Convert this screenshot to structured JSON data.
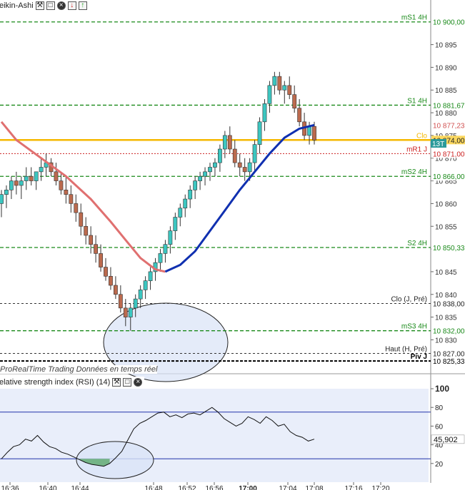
{
  "price_panel": {
    "title": "eikin-Ashi",
    "watermark": "ProRealTime Trading  Données en temps réel",
    "y_ticks": [
      "10 895",
      "10 890",
      "10 885",
      "10 880",
      "10 875",
      "10 870",
      "10 865",
      "10 860",
      "10 855",
      "10 850",
      "10 845",
      "10 840",
      "10 835",
      "10 830"
    ]
  },
  "rsi_panel": {
    "title": "elative strength index (RSI) (14)",
    "y_ticks": [
      "100",
      "80",
      "60",
      "40",
      "20"
    ],
    "value_label": "45,902"
  },
  "x_axis": {
    "labels": [
      "16:36",
      "16:40",
      "16:44",
      "16:48",
      "16:52",
      "16:56",
      "17:00",
      "17:04",
      "17:08",
      "17:16",
      "17:20"
    ]
  },
  "colors": {
    "bull": "#3cc6c0",
    "bear": "#bb6a4e",
    "ma_red": "#e07070",
    "ma_blue": "#1030b0",
    "green_level": "#1a8a1a",
    "red_level": "#cc2222",
    "black_level": "#333333",
    "close_line": "#f5b800",
    "rsi_band": "#2233aa",
    "ellipse_fill": "#d9e3f7"
  },
  "chart_data": [
    {
      "type": "candlestick",
      "title": "eikin-Ashi",
      "ylim": [
        10823,
        10902
      ],
      "x_labels": [
        "16:36",
        "16:40",
        "16:44",
        "16:48",
        "16:52",
        "16:56",
        "17:00",
        "17:04",
        "17:08",
        "17:16",
        "17:20"
      ],
      "levels": [
        {
          "name": "mS1 4H",
          "value_label": "10 900,00",
          "value": 10900.0,
          "style": "green"
        },
        {
          "name": "S1 4H",
          "value_label": "10 881,67",
          "value": 10881.67,
          "style": "green"
        },
        {
          "name": "",
          "value_label": "10 877,23",
          "value": 10877.23,
          "style": "last"
        },
        {
          "name": "Clo",
          "value_label": "10 874,00",
          "value": 10874.0,
          "style": "close"
        },
        {
          "name": "mR1 J",
          "value_label": "10 871,00",
          "value": 10871.0,
          "style": "red"
        },
        {
          "name": "mS2 4H",
          "value_label": "10 866,00",
          "value": 10866.0,
          "style": "green"
        },
        {
          "name": "S2 4H",
          "value_label": "10 850,33",
          "value": 10850.33,
          "style": "green"
        },
        {
          "name": "Clo (J, Pré)",
          "value_label": "10 838,00",
          "value": 10838.0,
          "style": "black"
        },
        {
          "name": "mS3 4H",
          "value_label": "10 832,00",
          "value": 10832.0,
          "style": "green"
        },
        {
          "name": "Haut (H, Pré)",
          "value_label": "10 827,00",
          "value": 10827.0,
          "style": "black"
        },
        {
          "name": "Piv J",
          "value_label": "10 825,33",
          "value": 10825.33,
          "style": "black_bold"
        }
      ],
      "candles": [
        [
          10860,
          10863,
          10857,
          10862
        ],
        [
          10862,
          10864,
          10859,
          10863
        ],
        [
          10863,
          10866,
          10861,
          10865
        ],
        [
          10865,
          10867,
          10862,
          10864
        ],
        [
          10864,
          10866,
          10861,
          10865
        ],
        [
          10865,
          10868,
          10863,
          10866
        ],
        [
          10866,
          10868,
          10864,
          10865
        ],
        [
          10865,
          10867,
          10863,
          10867
        ],
        [
          10867,
          10870,
          10865,
          10868
        ],
        [
          10868,
          10871,
          10866,
          10869
        ],
        [
          10869,
          10870,
          10866,
          10867
        ],
        [
          10867,
          10869,
          10864,
          10865
        ],
        [
          10865,
          10867,
          10862,
          10863
        ],
        [
          10863,
          10866,
          10860,
          10862
        ],
        [
          10862,
          10864,
          10858,
          10860
        ],
        [
          10860,
          10862,
          10856,
          10858
        ],
        [
          10858,
          10860,
          10853,
          10855
        ],
        [
          10855,
          10857,
          10851,
          10853
        ],
        [
          10853,
          10855,
          10849,
          10851
        ],
        [
          10851,
          10853,
          10847,
          10849
        ],
        [
          10849,
          10851,
          10845,
          10846
        ],
        [
          10846,
          10848,
          10843,
          10844
        ],
        [
          10844,
          10846,
          10841,
          10842
        ],
        [
          10842,
          10844,
          10839,
          10840
        ],
        [
          10840,
          10842,
          10836,
          10837
        ],
        [
          10837,
          10839,
          10833,
          10835
        ],
        [
          10835,
          10838,
          10832,
          10837
        ],
        [
          10837,
          10840,
          10835,
          10839
        ],
        [
          10839,
          10842,
          10837,
          10841
        ],
        [
          10841,
          10844,
          10839,
          10843
        ],
        [
          10843,
          10846,
          10841,
          10845
        ],
        [
          10845,
          10848,
          10843,
          10847
        ],
        [
          10847,
          10850,
          10845,
          10849
        ],
        [
          10849,
          10852,
          10847,
          10851
        ],
        [
          10851,
          10855,
          10849,
          10854
        ],
        [
          10854,
          10858,
          10852,
          10857
        ],
        [
          10857,
          10860,
          10855,
          10859
        ],
        [
          10859,
          10862,
          10857,
          10861
        ],
        [
          10861,
          10864,
          10859,
          10863
        ],
        [
          10863,
          10866,
          10861,
          10865
        ],
        [
          10865,
          10867,
          10863,
          10866
        ],
        [
          10866,
          10868,
          10864,
          10867
        ],
        [
          10867,
          10869,
          10865,
          10868
        ],
        [
          10868,
          10870,
          10866,
          10869
        ],
        [
          10869,
          10873,
          10867,
          10872
        ],
        [
          10872,
          10876,
          10870,
          10875
        ],
        [
          10875,
          10877,
          10871,
          10872
        ],
        [
          10872,
          10874,
          10868,
          10869
        ],
        [
          10869,
          10871,
          10866,
          10868
        ],
        [
          10868,
          10870,
          10865,
          10867
        ],
        [
          10867,
          10870,
          10865,
          10869
        ],
        [
          10869,
          10874,
          10867,
          10873
        ],
        [
          10873,
          10879,
          10871,
          10878
        ],
        [
          10878,
          10883,
          10876,
          10882
        ],
        [
          10882,
          10887,
          10880,
          10886
        ],
        [
          10886,
          10889,
          10884,
          10888
        ],
        [
          10888,
          10889,
          10884,
          10885
        ],
        [
          10885,
          10887,
          10882,
          10886
        ],
        [
          10886,
          10888,
          10883,
          10884
        ],
        [
          10884,
          10886,
          10880,
          10881
        ],
        [
          10881,
          10883,
          10877,
          10878
        ],
        [
          10878,
          10880,
          10874,
          10875
        ],
        [
          10875,
          10878,
          10873,
          10877
        ],
        [
          10877,
          10878,
          10873,
          10874
        ]
      ],
      "ma_red": [
        [
          0,
          10878
        ],
        [
          3,
          10874
        ],
        [
          8,
          10870
        ],
        [
          13,
          10866
        ],
        [
          18,
          10861
        ],
        [
          22,
          10856
        ],
        [
          25,
          10852
        ],
        [
          28,
          10848
        ],
        [
          31,
          10845.5
        ],
        [
          33,
          10845
        ]
      ],
      "ma_blue": [
        [
          33,
          10845
        ],
        [
          36,
          10846.5
        ],
        [
          39,
          10849.5
        ],
        [
          42,
          10854
        ],
        [
          45,
          10858.5
        ],
        [
          48,
          10863
        ],
        [
          51,
          10867
        ],
        [
          54,
          10871
        ],
        [
          57,
          10874.5
        ],
        [
          60,
          10876.5
        ],
        [
          63,
          10877.3
        ]
      ]
    },
    {
      "type": "line",
      "title": "elative strength index (RSI) (14)",
      "ylim": [
        0,
        100
      ],
      "bands": [
        75,
        25
      ],
      "last_value": 45.902,
      "x_labels": [
        "16:36",
        "16:40",
        "16:44",
        "16:48",
        "16:52",
        "16:56",
        "17:00",
        "17:04",
        "17:08",
        "17:16",
        "17:20"
      ],
      "values": [
        25,
        32,
        38,
        40,
        46,
        44,
        50,
        43,
        38,
        36,
        32,
        30,
        27,
        24,
        21,
        19,
        18,
        17,
        20,
        26,
        33,
        45,
        57,
        63,
        66,
        70,
        74,
        75,
        70,
        72,
        69,
        73,
        74,
        72,
        76,
        80,
        75,
        68,
        64,
        60,
        63,
        70,
        67,
        63,
        70,
        66,
        60,
        62,
        54,
        50,
        48,
        44,
        46
      ]
    }
  ]
}
